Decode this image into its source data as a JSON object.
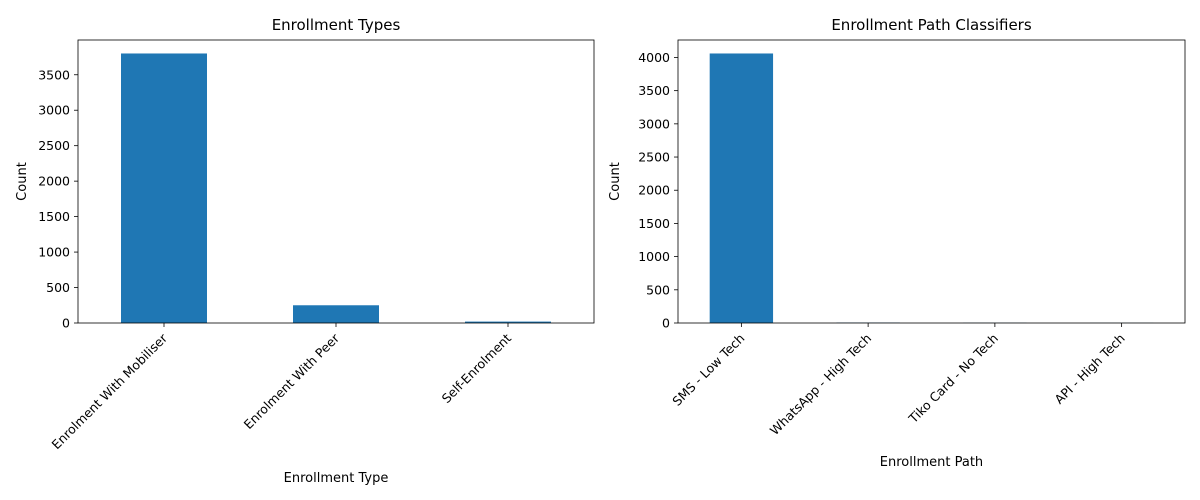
{
  "chart_data": [
    {
      "type": "bar",
      "title": "Enrollment Types",
      "xlabel": "Enrollment Type",
      "ylabel": "Count",
      "categories": [
        "Enrolment With Mobiliser",
        "Enrolment With Peer",
        "Self-Enrolment"
      ],
      "values": [
        3800,
        250,
        20
      ],
      "ylim": [
        0,
        3990
      ],
      "yticks": [
        0,
        500,
        1000,
        1500,
        2000,
        2500,
        3000,
        3500
      ],
      "grid": false,
      "bar_color": "#1f77b4"
    },
    {
      "type": "bar",
      "title": "Enrollment Path Classifiers",
      "xlabel": "Enrollment Path",
      "ylabel": "Count",
      "categories": [
        "SMS - Low Tech",
        "WhatsApp - High Tech",
        "Tiko Card - No Tech",
        "API - High Tech"
      ],
      "values": [
        4060,
        6,
        3,
        2
      ],
      "ylim": [
        0,
        4263
      ],
      "yticks": [
        0,
        500,
        1000,
        1500,
        2000,
        2500,
        3000,
        3500,
        4000
      ],
      "grid": false,
      "bar_color": "#1f77b4"
    }
  ]
}
